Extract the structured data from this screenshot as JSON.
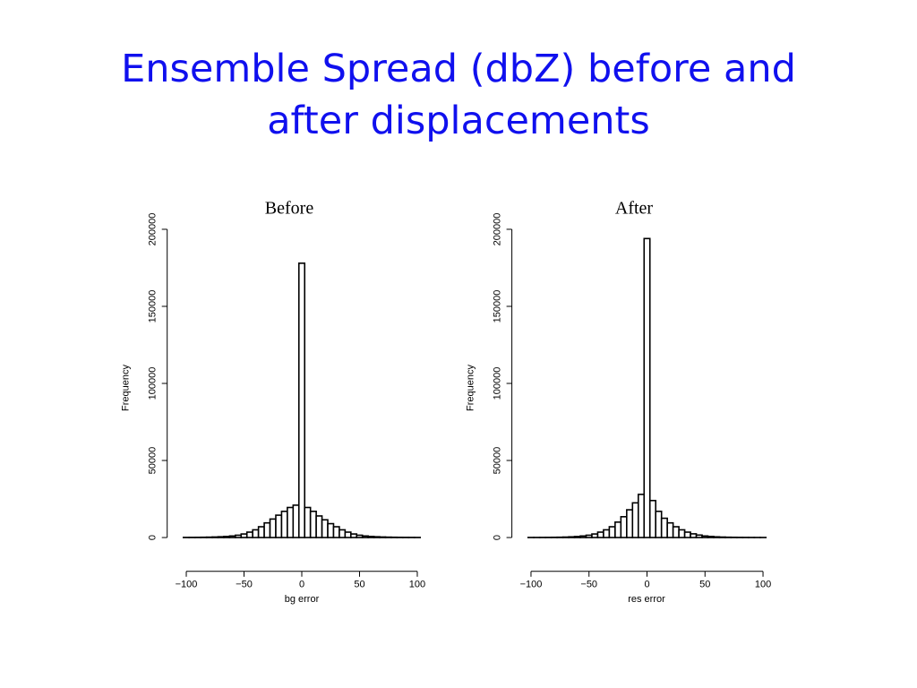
{
  "slide": {
    "title": "Ensemble Spread (dbZ) before and after displacements"
  },
  "chart_data": [
    {
      "type": "histogram",
      "title": "Before",
      "x_label": "bg error",
      "y_label": "Frequency",
      "bins": [
        -102.5,
        -97.5,
        -92.5,
        -87.5,
        -82.5,
        -77.5,
        -72.5,
        -67.5,
        -62.5,
        -57.5,
        -52.5,
        -47.5,
        -42.5,
        -37.5,
        -32.5,
        -27.5,
        -22.5,
        -17.5,
        -12.5,
        -7.5,
        -2.5,
        2.5,
        7.5,
        12.5,
        17.5,
        22.5,
        27.5,
        32.5,
        37.5,
        42.5,
        47.5,
        52.5,
        57.5,
        62.5,
        67.5,
        72.5,
        77.5,
        82.5,
        87.5,
        92.5,
        97.5,
        102.5
      ],
      "counts": [
        80,
        100,
        130,
        180,
        250,
        350,
        500,
        700,
        1000,
        1500,
        2300,
        3500,
        5000,
        7000,
        9500,
        12000,
        14500,
        17000,
        19500,
        21000,
        178000,
        19500,
        17000,
        14000,
        11500,
        9000,
        7000,
        5000,
        3500,
        2300,
        1500,
        1000,
        700,
        500,
        350,
        250,
        180,
        130,
        100,
        80,
        60
      ],
      "color": "#ffffff",
      "xlim": [
        -108,
        108
      ],
      "ylim": [
        -8000,
        208000
      ],
      "xticks": [
        {
          "value": -100,
          "label": "−100"
        },
        {
          "value": -50,
          "label": "−50"
        },
        0,
        50,
        100
      ],
      "yticks": [
        0,
        50000,
        100000,
        150000,
        200000
      ]
    },
    {
      "type": "histogram",
      "title": "After",
      "x_label": "res error",
      "y_label": "Frequency",
      "bins": [
        -102.5,
        -97.5,
        -92.5,
        -87.5,
        -82.5,
        -77.5,
        -72.5,
        -67.5,
        -62.5,
        -57.5,
        -52.5,
        -47.5,
        -42.5,
        -37.5,
        -32.5,
        -27.5,
        -22.5,
        -17.5,
        -12.5,
        -7.5,
        -2.5,
        2.5,
        7.5,
        12.5,
        17.5,
        22.5,
        27.5,
        32.5,
        37.5,
        42.5,
        47.5,
        52.5,
        57.5,
        62.5,
        67.5,
        72.5,
        77.5,
        82.5,
        87.5,
        92.5,
        97.5,
        102.5
      ],
      "counts": [
        50,
        60,
        80,
        100,
        150,
        200,
        300,
        450,
        650,
        1000,
        1500,
        2300,
        3500,
        5000,
        7000,
        10000,
        13500,
        18000,
        22500,
        28000,
        194000,
        24000,
        17000,
        12500,
        9500,
        7000,
        5000,
        3500,
        2400,
        1600,
        1000,
        700,
        450,
        300,
        200,
        150,
        100,
        80,
        60,
        50,
        40
      ],
      "color": "#ffffff",
      "xlim": [
        -108,
        108
      ],
      "ylim": [
        -8000,
        208000
      ],
      "xticks": [
        {
          "value": -100,
          "label": "−100"
        },
        {
          "value": -50,
          "label": "−50"
        },
        0,
        50,
        100
      ],
      "yticks": [
        0,
        50000,
        100000,
        150000,
        200000
      ]
    }
  ]
}
